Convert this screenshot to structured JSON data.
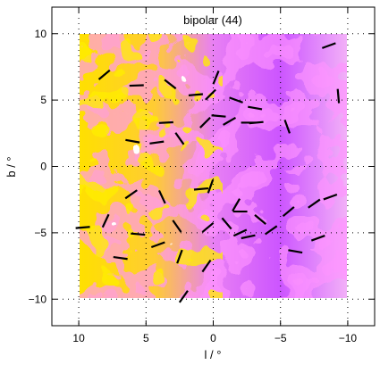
{
  "chart_data": {
    "type": "heatmap",
    "title": "bipolar (44)",
    "xlabel": "l / °",
    "ylabel": "b / °",
    "xlim": [
      12,
      -12
    ],
    "ylim": [
      -12,
      12
    ],
    "x_ticks": [
      10,
      5,
      0,
      -5,
      -10
    ],
    "x_tick_labels": [
      "10",
      "5",
      "0",
      "−5",
      "−10"
    ],
    "y_ticks": [
      10,
      5,
      0,
      -5,
      -10
    ],
    "y_tick_labels": [
      "10",
      "5",
      "0",
      "−5",
      "−10"
    ],
    "grid": true,
    "legend": "none",
    "field_extent": {
      "l": [
        10,
        -10
      ],
      "b": [
        -10,
        10
      ]
    },
    "colormap": [
      "#ffffff",
      "#f2b0f8",
      "#e880f4",
      "#cc55ff",
      "#ee44ee",
      "#ffd98a",
      "#ffb400",
      "#ffe000"
    ],
    "vector_color": "#000000",
    "vectors": [
      {
        "l": 8.1,
        "b": 6.9,
        "angle": 40
      },
      {
        "l": 5.7,
        "b": 6.1,
        "angle": 2
      },
      {
        "l": 3.2,
        "b": 6.2,
        "angle": -38
      },
      {
        "l": 1.3,
        "b": 5.4,
        "angle": 5
      },
      {
        "l": -0.2,
        "b": 6.7,
        "angle": 68
      },
      {
        "l": 0.2,
        "b": 5.4,
        "angle": 45
      },
      {
        "l": -1.7,
        "b": 5.0,
        "angle": -20
      },
      {
        "l": -3.1,
        "b": 4.4,
        "angle": -10
      },
      {
        "l": -8.6,
        "b": 9.1,
        "angle": 20
      },
      {
        "l": -9.3,
        "b": 5.3,
        "angle": -85
      },
      {
        "l": 3.5,
        "b": 3.3,
        "angle": 3
      },
      {
        "l": 0.6,
        "b": 3.3,
        "angle": 45
      },
      {
        "l": -0.4,
        "b": 3.8,
        "angle": -5
      },
      {
        "l": -1.2,
        "b": 3.4,
        "angle": 30
      },
      {
        "l": -2.6,
        "b": 3.3,
        "angle": 0
      },
      {
        "l": -3.2,
        "b": 3.3,
        "angle": 5
      },
      {
        "l": -5.5,
        "b": 3.0,
        "angle": -70
      },
      {
        "l": 6.0,
        "b": 1.9,
        "angle": -10
      },
      {
        "l": 4.2,
        "b": 1.8,
        "angle": 8
      },
      {
        "l": 2.5,
        "b": 2.1,
        "angle": -55
      },
      {
        "l": 6.1,
        "b": -2.1,
        "angle": 35
      },
      {
        "l": 3.8,
        "b": -2.3,
        "angle": -65
      },
      {
        "l": 0.9,
        "b": -1.7,
        "angle": 5
      },
      {
        "l": 0.2,
        "b": -1.5,
        "angle": 70
      },
      {
        "l": -1.7,
        "b": -2.9,
        "angle": 60
      },
      {
        "l": -2.0,
        "b": -3.4,
        "angle": 0
      },
      {
        "l": -3.5,
        "b": -4.0,
        "angle": -40
      },
      {
        "l": -5.6,
        "b": -3.4,
        "angle": 40
      },
      {
        "l": -7.5,
        "b": -2.8,
        "angle": 35
      },
      {
        "l": -8.7,
        "b": -2.3,
        "angle": 20
      },
      {
        "l": 8.0,
        "b": -4.1,
        "angle": 65
      },
      {
        "l": 0.4,
        "b": -4.6,
        "angle": 40
      },
      {
        "l": -1.0,
        "b": -4.3,
        "angle": -50
      },
      {
        "l": -2.0,
        "b": -5.0,
        "angle": 25
      },
      {
        "l": -2.6,
        "b": -5.3,
        "angle": 12
      },
      {
        "l": -4.3,
        "b": -4.8,
        "angle": 35
      },
      {
        "l": 9.7,
        "b": -4.6,
        "angle": 5
      },
      {
        "l": 5.6,
        "b": -5.1,
        "angle": -5
      },
      {
        "l": 4.1,
        "b": -5.9,
        "angle": 20
      },
      {
        "l": 2.7,
        "b": -4.5,
        "angle": -55
      },
      {
        "l": 6.9,
        "b": -6.9,
        "angle": -8
      },
      {
        "l": 2.5,
        "b": -6.8,
        "angle": 70
      },
      {
        "l": 0.5,
        "b": -7.5,
        "angle": 55
      },
      {
        "l": -6.1,
        "b": -6.4,
        "angle": -10
      },
      {
        "l": -7.8,
        "b": -5.4,
        "angle": 20
      },
      {
        "l": 2.2,
        "b": -9.8,
        "angle": 55
      }
    ]
  }
}
